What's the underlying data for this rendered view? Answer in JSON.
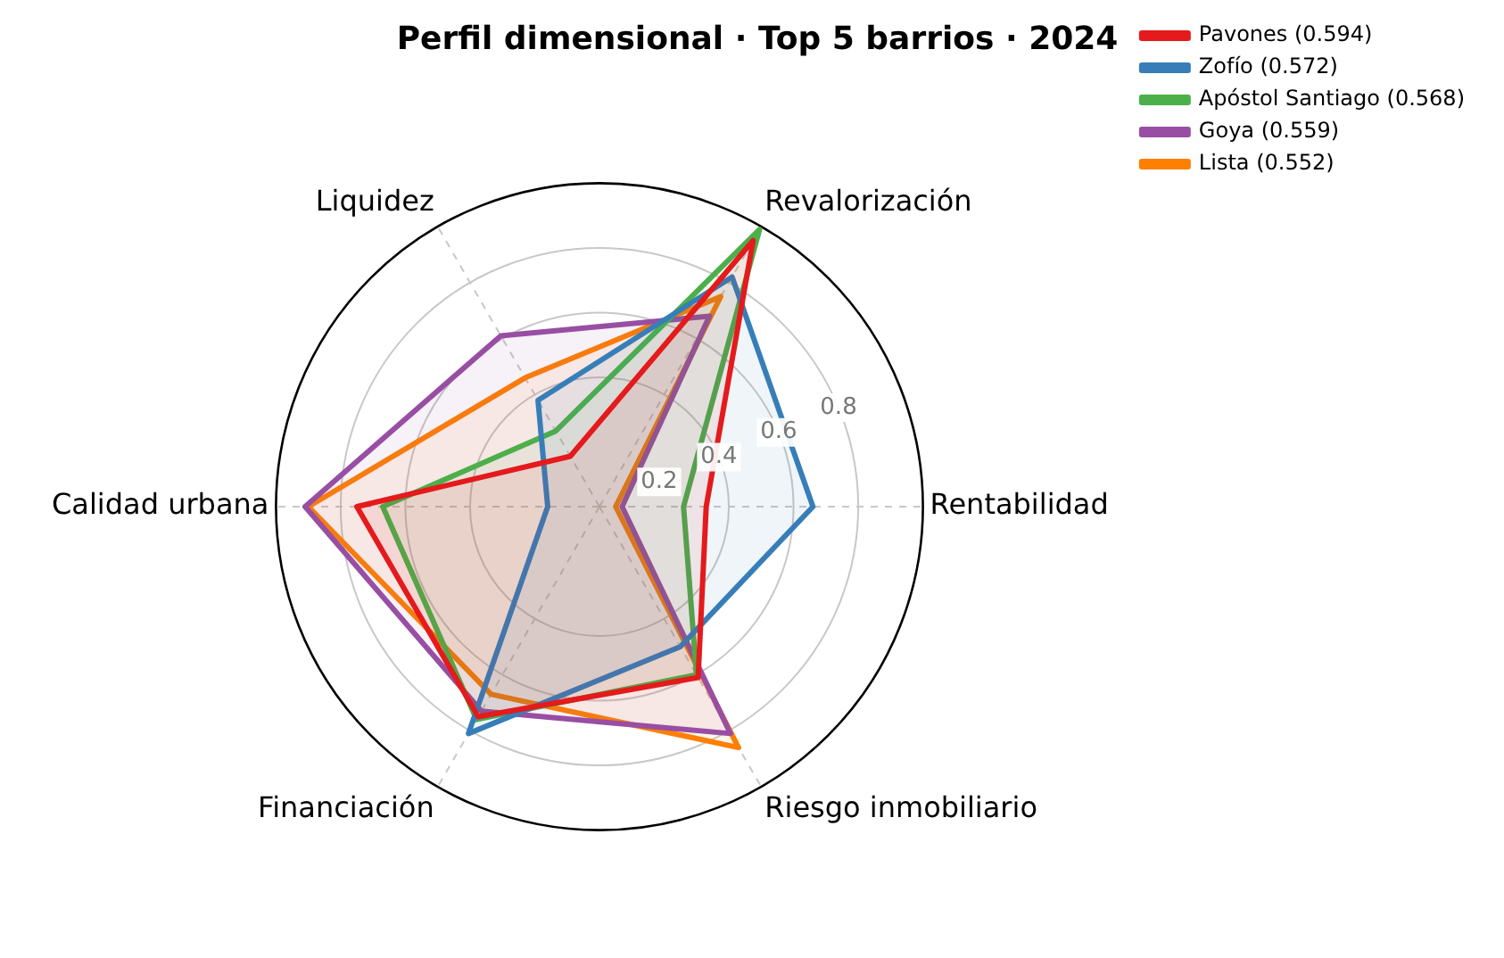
{
  "chart_data": {
    "type": "radar",
    "title": "Perfil dimensional · Top 5 barrios · 2024",
    "categories": [
      "Revalorización",
      "Rentabilidad",
      "Riesgo inmobiliario",
      "Financiación",
      "Calidad urbana",
      "Liquidez"
    ],
    "series": [
      {
        "name": "Pavones (0.594)",
        "color": "#e41a1c",
        "values": [
          0.95,
          0.33,
          0.61,
          0.75,
          0.75,
          0.18
        ]
      },
      {
        "name": "Zofío (0.572)",
        "color": "#377eb8",
        "values": [
          0.82,
          0.66,
          0.5,
          0.81,
          0.16,
          0.38
        ]
      },
      {
        "name": "Apóstol Santiago (0.568)",
        "color": "#4daf4a",
        "values": [
          0.99,
          0.26,
          0.6,
          0.76,
          0.67,
          0.27
        ]
      },
      {
        "name": "Goya (0.559)",
        "color": "#984ea3",
        "values": [
          0.68,
          0.07,
          0.81,
          0.73,
          0.91,
          0.61
        ]
      },
      {
        "name": "Lista (0.552)",
        "color": "#ff7f00",
        "values": [
          0.75,
          0.05,
          0.86,
          0.67,
          0.9,
          0.46
        ]
      }
    ],
    "ylim": [
      0,
      1
    ],
    "yticks": [
      0.2,
      0.4,
      0.6,
      0.8
    ],
    "grid": true,
    "legend": "top right",
    "marker": "none",
    "line_style": "solid"
  }
}
